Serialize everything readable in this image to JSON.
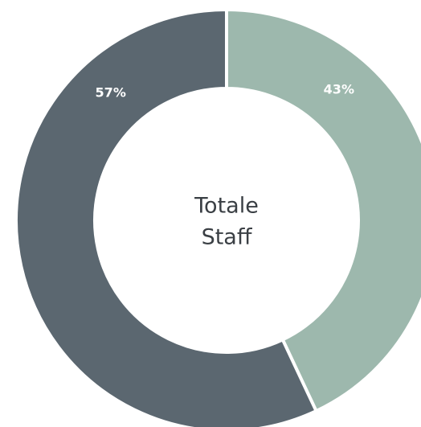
{
  "chart_data": {
    "type": "donut",
    "center_text": [
      "Totale",
      "Staff"
    ],
    "values": [
      43,
      57
    ],
    "value_labels": [
      "43%",
      "57%"
    ],
    "colors": [
      "#9db8ad",
      "#5b6770"
    ]
  }
}
